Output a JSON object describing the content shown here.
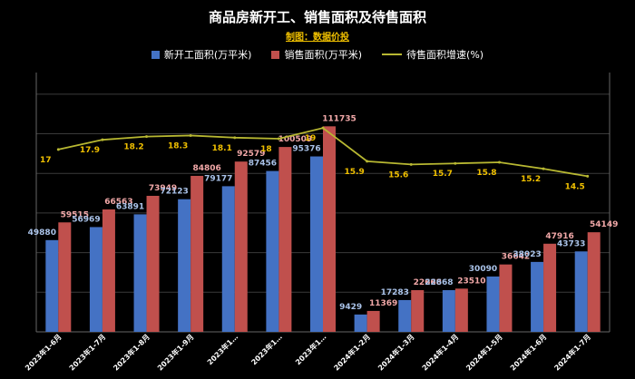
{
  "chart_data": {
    "type": "bar",
    "title": "商品房新开工、销售面积及待售面积",
    "subtitle": "制图：数据价投",
    "categories": [
      "2023年1-6月",
      "2023年1-7月",
      "2023年1-8月",
      "2023年1-9月",
      "2023年1…",
      "2023年1…",
      "2023年1…",
      "2024年1-2月",
      "2024年1-3月",
      "2024年1-4月",
      "2024年1-5月",
      "2024年1-6月",
      "2024年1-7月"
    ],
    "series": [
      {
        "name": "新开工面积(万平米)",
        "type": "bar",
        "axis": "left",
        "color": "#4472c4",
        "values": [
          49880,
          56969,
          63891,
          72123,
          79177,
          87456,
          95376,
          9429,
          17283,
          22668,
          30090,
          38023,
          43733
        ],
        "labels": [
          "49880",
          "56969",
          "63891",
          "72123",
          "79177",
          "87456",
          "95376",
          "9429",
          "17283",
          "22668",
          "30090",
          "38023",
          "43733"
        ]
      },
      {
        "name": "销售面积(万平米)",
        "type": "bar",
        "axis": "left",
        "color": "#c0504d",
        "values": [
          59515,
          66563,
          73949,
          84806,
          92579,
          100509,
          111735,
          11369,
          22668,
          23510,
          36642,
          47916,
          54149
        ],
        "labels": [
          "59515",
          "66563",
          "73949",
          "84806",
          "92579",
          "100509",
          "111735",
          "11369",
          "22668",
          "23510",
          "36642",
          "47916",
          "54149"
        ]
      },
      {
        "name": "待售面积增速(%)",
        "type": "line",
        "axis": "right",
        "color": "#b8b832",
        "values": [
          17,
          17.9,
          18.2,
          18.3,
          18.1,
          18,
          19,
          15.9,
          15.6,
          15.7,
          15.8,
          15.2,
          14.5
        ],
        "labels": [
          "17",
          "17.9",
          "18.2",
          "18.3",
          "18.1",
          "18",
          "19",
          "15.9",
          "15.6",
          "15.7",
          "15.8",
          "15.2",
          "14.5"
        ]
      }
    ],
    "ylim_left": [
      0,
      140000
    ],
    "ylim_right": [
      0,
      24
    ],
    "grid": true,
    "legend": "top-center",
    "colors": {
      "bar_label_blue": "#a9c2e8",
      "bar_label_red": "#f2a8a8",
      "line_label": "#f0c000",
      "subtitle": "#f0c000",
      "axis": "#666666",
      "grid": "#3a3a3a"
    }
  }
}
